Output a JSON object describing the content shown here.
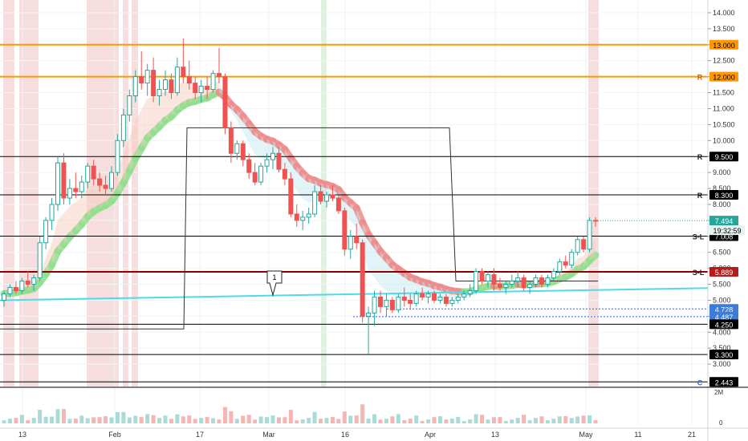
{
  "chart_data": {
    "type": "candlestick",
    "y_scale": "linear",
    "ylim": [
      2.3,
      14.4
    ],
    "y_ticks": [
      "14.000",
      "13.500",
      "13.000",
      "12.500",
      "12.000",
      "11.500",
      "11.000",
      "10.500",
      "10.000",
      "9.500",
      "9.000",
      "8.500",
      "8.000",
      "7.500",
      "7.000",
      "6.500",
      "6.000",
      "5.500",
      "5.000",
      "4.500",
      "4.000",
      "3.500",
      "3.000"
    ],
    "x_ticks": [
      "13",
      "Feb",
      "17",
      "Mar",
      "16",
      "Apr",
      "13",
      "May",
      "11",
      "21"
    ],
    "levels": [
      {
        "label": "13.000",
        "value": 13.0,
        "color": "#ff9800",
        "marker": ""
      },
      {
        "label": "12.000",
        "value": 12.0,
        "color": "#ff9800",
        "marker": "R"
      },
      {
        "label": "9.500",
        "value": 9.5,
        "color": "#000000",
        "marker": "R"
      },
      {
        "label": "8.300",
        "value": 8.3,
        "color": "#000000",
        "marker": "R"
      },
      {
        "label": "7.008",
        "value": 7.008,
        "color": "#000000",
        "marker": "S-L"
      },
      {
        "label": "5.889",
        "value": 5.889,
        "color": "#8b0000",
        "marker": "S-L"
      },
      {
        "label": "4.728",
        "value": 4.728,
        "color": "#2962ff",
        "marker": ""
      },
      {
        "label": "4.487",
        "value": 4.487,
        "color": "#2962ff",
        "marker": ""
      },
      {
        "label": "4.250",
        "value": 4.25,
        "color": "#000000",
        "marker": ""
      },
      {
        "label": "3.300",
        "value": 3.3,
        "color": "#000000",
        "marker": ""
      },
      {
        "label": "2.443",
        "value": 2.443,
        "color": "#000000",
        "marker": "C"
      }
    ],
    "last_price": "7.494",
    "countdown": "19:32:59",
    "annotation": "1",
    "volume_axis": [
      "2M",
      "0"
    ],
    "candles_ohlc": [
      [
        5.0,
        5.3,
        4.8,
        5.2
      ],
      [
        5.2,
        5.5,
        5.1,
        5.4
      ],
      [
        5.4,
        5.6,
        5.2,
        5.3
      ],
      [
        5.3,
        5.7,
        5.2,
        5.6
      ],
      [
        5.6,
        5.9,
        5.4,
        5.5
      ],
      [
        5.5,
        5.8,
        5.3,
        5.7
      ],
      [
        5.7,
        7.0,
        5.6,
        6.8
      ],
      [
        6.8,
        7.6,
        6.6,
        7.5
      ],
      [
        7.5,
        8.2,
        7.2,
        8.0
      ],
      [
        8.0,
        9.5,
        7.8,
        9.3
      ],
      [
        9.3,
        9.6,
        8.0,
        8.2
      ],
      [
        8.2,
        8.8,
        8.0,
        8.5
      ],
      [
        8.5,
        9.0,
        8.2,
        8.4
      ],
      [
        8.4,
        8.9,
        8.2,
        8.7
      ],
      [
        8.7,
        9.3,
        8.5,
        9.2
      ],
      [
        9.2,
        9.4,
        8.6,
        8.8
      ],
      [
        8.8,
        9.0,
        8.4,
        8.6
      ],
      [
        8.6,
        8.9,
        8.3,
        8.5
      ],
      [
        8.5,
        9.2,
        8.4,
        9.0
      ],
      [
        9.0,
        10.2,
        8.9,
        10.0
      ],
      [
        10.0,
        11.0,
        9.8,
        10.8
      ],
      [
        10.8,
        11.6,
        10.6,
        11.4
      ],
      [
        11.4,
        12.2,
        11.2,
        12.0
      ],
      [
        12.0,
        12.8,
        11.6,
        11.8
      ],
      [
        11.8,
        12.4,
        11.4,
        12.2
      ],
      [
        12.2,
        12.6,
        11.2,
        11.4
      ],
      [
        11.4,
        11.9,
        11.1,
        11.6
      ],
      [
        11.6,
        12.2,
        11.4,
        11.9
      ],
      [
        11.9,
        12.1,
        11.3,
        11.5
      ],
      [
        11.5,
        12.6,
        11.4,
        12.3
      ],
      [
        12.3,
        13.2,
        11.8,
        12.0
      ],
      [
        12.0,
        12.5,
        11.6,
        11.8
      ],
      [
        11.8,
        12.0,
        11.3,
        11.5
      ],
      [
        11.5,
        11.9,
        11.2,
        11.7
      ],
      [
        11.7,
        12.0,
        11.3,
        11.6
      ],
      [
        11.6,
        12.2,
        11.5,
        12.1
      ],
      [
        12.1,
        12.9,
        11.8,
        12.0
      ],
      [
        12.0,
        12.1,
        10.2,
        10.4
      ],
      [
        10.4,
        10.6,
        9.3,
        9.6
      ],
      [
        9.6,
        10.0,
        9.4,
        9.9
      ],
      [
        9.9,
        10.0,
        9.2,
        9.4
      ],
      [
        9.4,
        9.6,
        8.8,
        9.0
      ],
      [
        9.0,
        9.3,
        8.6,
        8.7
      ],
      [
        8.7,
        9.3,
        8.6,
        9.2
      ],
      [
        9.2,
        9.6,
        9.0,
        9.4
      ],
      [
        9.4,
        9.8,
        9.1,
        9.6
      ],
      [
        9.6,
        9.8,
        9.0,
        9.1
      ],
      [
        9.1,
        9.3,
        8.6,
        8.8
      ],
      [
        8.8,
        9.0,
        7.6,
        7.7
      ],
      [
        7.7,
        8.0,
        7.3,
        7.5
      ],
      [
        7.5,
        7.8,
        7.2,
        7.6
      ],
      [
        7.6,
        7.9,
        7.4,
        7.7
      ],
      [
        7.7,
        8.6,
        7.6,
        8.4
      ],
      [
        8.4,
        8.6,
        8.0,
        8.1
      ],
      [
        8.1,
        8.4,
        7.9,
        8.3
      ],
      [
        8.3,
        8.6,
        8.1,
        8.2
      ],
      [
        8.2,
        8.3,
        7.7,
        7.8
      ],
      [
        7.8,
        7.9,
        6.4,
        6.6
      ],
      [
        6.6,
        7.2,
        6.3,
        7.0
      ],
      [
        7.0,
        7.4,
        6.6,
        6.8
      ],
      [
        6.8,
        6.9,
        4.3,
        4.5
      ],
      [
        4.5,
        4.8,
        3.3,
        4.6
      ],
      [
        4.6,
        5.3,
        4.2,
        5.1
      ],
      [
        5.1,
        5.3,
        4.6,
        4.8
      ],
      [
        4.8,
        5.2,
        4.5,
        5.0
      ],
      [
        5.0,
        5.1,
        4.6,
        4.7
      ],
      [
        4.7,
        5.2,
        4.6,
        5.1
      ],
      [
        5.1,
        5.4,
        4.8,
        5.0
      ],
      [
        5.0,
        5.2,
        4.7,
        4.9
      ],
      [
        4.9,
        5.3,
        4.8,
        5.2
      ],
      [
        5.2,
        5.4,
        5.0,
        5.1
      ],
      [
        5.1,
        5.3,
        4.9,
        5.2
      ],
      [
        5.2,
        5.3,
        4.9,
        5.0
      ],
      [
        5.0,
        5.2,
        4.9,
        5.1
      ],
      [
        5.1,
        5.2,
        4.8,
        4.9
      ],
      [
        4.9,
        5.1,
        4.8,
        5.0
      ],
      [
        5.0,
        5.2,
        4.9,
        5.1
      ],
      [
        5.1,
        5.3,
        5.0,
        5.2
      ],
      [
        5.2,
        5.5,
        5.1,
        5.3
      ],
      [
        5.3,
        6.0,
        5.2,
        5.9
      ],
      [
        5.9,
        6.0,
        5.5,
        5.6
      ],
      [
        5.6,
        5.9,
        5.4,
        5.8
      ],
      [
        5.8,
        6.0,
        5.3,
        5.5
      ],
      [
        5.5,
        5.7,
        5.3,
        5.4
      ],
      [
        5.4,
        5.6,
        5.2,
        5.5
      ],
      [
        5.5,
        5.8,
        5.4,
        5.6
      ],
      [
        5.6,
        5.9,
        5.4,
        5.7
      ],
      [
        5.7,
        5.8,
        5.3,
        5.4
      ],
      [
        5.4,
        5.6,
        5.2,
        5.5
      ],
      [
        5.5,
        5.8,
        5.4,
        5.7
      ],
      [
        5.7,
        5.8,
        5.4,
        5.5
      ],
      [
        5.5,
        5.8,
        5.4,
        5.7
      ],
      [
        5.7,
        6.0,
        5.6,
        5.9
      ],
      [
        5.9,
        6.3,
        5.8,
        6.2
      ],
      [
        6.2,
        6.4,
        6.0,
        6.1
      ],
      [
        6.1,
        6.6,
        6.0,
        6.5
      ],
      [
        6.5,
        7.0,
        6.4,
        6.9
      ],
      [
        6.9,
        7.0,
        6.5,
        6.6
      ],
      [
        6.6,
        7.6,
        6.5,
        7.5
      ],
      [
        7.5,
        7.6,
        7.3,
        7.494
      ]
    ]
  }
}
